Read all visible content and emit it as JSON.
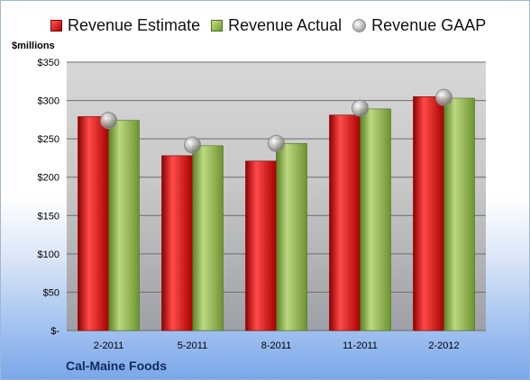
{
  "chart_data": {
    "type": "bar",
    "title": "",
    "xlabel": "",
    "ylabel": "$millions",
    "ylim": [
      0,
      350
    ],
    "grid": true,
    "legend_position": "top",
    "categories": [
      "2-2011",
      "5-2011",
      "8-2011",
      "11-2011",
      "2-2012"
    ],
    "yticks": [
      {
        "value": 0,
        "label": "$-"
      },
      {
        "value": 50,
        "label": "$50"
      },
      {
        "value": 100,
        "label": "$100"
      },
      {
        "value": 150,
        "label": "$150"
      },
      {
        "value": 200,
        "label": "$200"
      },
      {
        "value": 250,
        "label": "$250"
      },
      {
        "value": 300,
        "label": "$300"
      },
      {
        "value": 350,
        "label": "$350"
      }
    ],
    "series": [
      {
        "name": "Revenue Estimate",
        "kind": "bar",
        "color": "#c41a1a",
        "values": [
          279,
          228,
          221,
          281,
          305
        ]
      },
      {
        "name": "Revenue Actual",
        "kind": "bar",
        "color": "#8fb04a",
        "values": [
          274,
          241,
          244,
          289,
          303
        ]
      },
      {
        "name": "Revenue GAAP",
        "kind": "marker",
        "color": "#b0b0b0",
        "values": [
          274,
          242,
          244,
          290,
          304
        ]
      }
    ],
    "footer": "Cal-Maine Foods"
  }
}
